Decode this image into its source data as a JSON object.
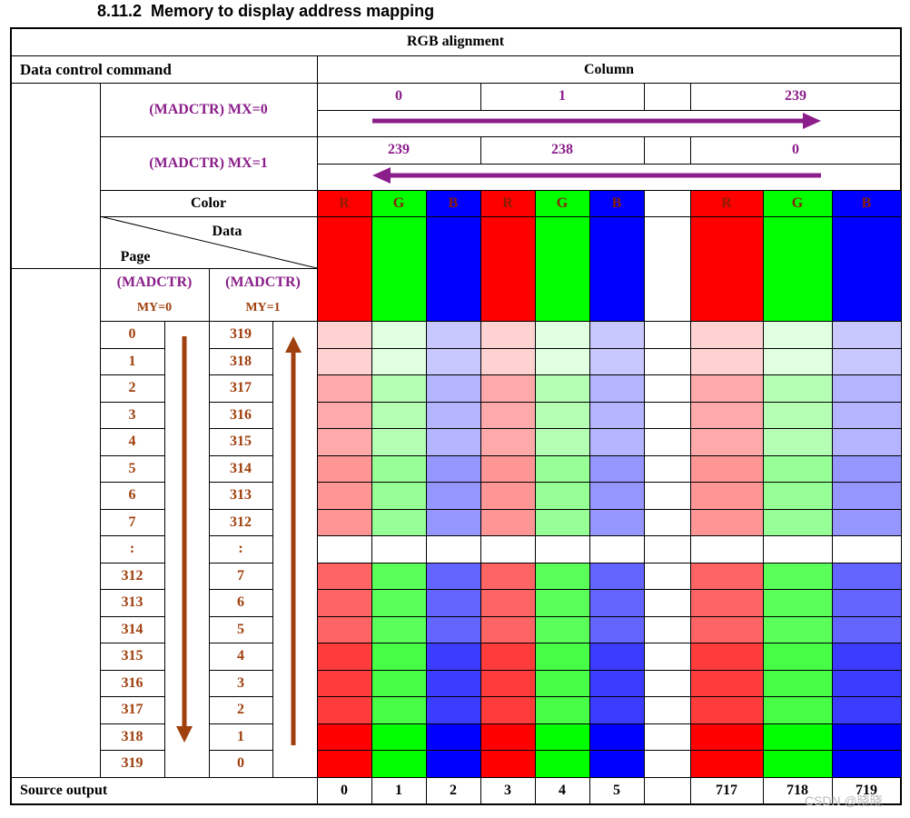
{
  "heading": "8.11.2  Memory to display address mapping",
  "header": {
    "title": "RGB alignment",
    "data_control_command": "Data control command",
    "column": "Column"
  },
  "mx0": {
    "label": "(MADCTR) MX=0",
    "col_a": "0",
    "col_b": "1",
    "col_c": "239"
  },
  "mx1": {
    "label": "(MADCTR) MX=1",
    "col_a": "239",
    "col_b": "238",
    "col_c": "0"
  },
  "color_label": "Color",
  "data_label": "Data",
  "page_label": "Page",
  "my0": {
    "line1": "(MADCTR)",
    "line2": "MY=0"
  },
  "my1": {
    "line1": "(MADCTR)",
    "line2": "MY=1"
  },
  "channels": [
    "R",
    "G",
    "B",
    "R",
    "G",
    "B",
    "R",
    "G",
    "B"
  ],
  "rows": [
    {
      "my0": "0",
      "my1": "319"
    },
    {
      "my0": "1",
      "my1": "318"
    },
    {
      "my0": "2",
      "my1": "317"
    },
    {
      "my0": "3",
      "my1": "316"
    },
    {
      "my0": "4",
      "my1": "315"
    },
    {
      "my0": "5",
      "my1": "314"
    },
    {
      "my0": "6",
      "my1": "313"
    },
    {
      "my0": "7",
      "my1": "312"
    },
    {
      "my0": ":",
      "my1": ":"
    },
    {
      "my0": "312",
      "my1": "7"
    },
    {
      "my0": "313",
      "my1": "6"
    },
    {
      "my0": "314",
      "my1": "5"
    },
    {
      "my0": "315",
      "my1": "4"
    },
    {
      "my0": "316",
      "my1": "3"
    },
    {
      "my0": "317",
      "my1": "2"
    },
    {
      "my0": "318",
      "my1": "1"
    },
    {
      "my0": "319",
      "my1": "0"
    }
  ],
  "row_shades": {
    "R": [
      "#ffd2d2",
      "#ffd2d2",
      "#ffaaaa",
      "#ffaaaa",
      "#ffaaaa",
      "#ff9696",
      "#ff9696",
      "#ff9696",
      "#ffffff",
      "#ff6464",
      "#ff6464",
      "#ff6464",
      "#ff3c3c",
      "#ff3c3c",
      "#ff3c3c",
      "#ff0000",
      "#ff0000"
    ],
    "G": [
      "#e1ffe1",
      "#e1ffe1",
      "#b4ffb4",
      "#b4ffb4",
      "#b4ffb4",
      "#96ff96",
      "#96ff96",
      "#96ff96",
      "#ffffff",
      "#5aff5a",
      "#5aff5a",
      "#5aff5a",
      "#46ff46",
      "#46ff46",
      "#46ff46",
      "#00ff00",
      "#00ff00"
    ],
    "B": [
      "#c8c8ff",
      "#c8c8ff",
      "#b4b4ff",
      "#b4b4ff",
      "#b4b4ff",
      "#9696ff",
      "#9696ff",
      "#9696ff",
      "#ffffff",
      "#6464ff",
      "#6464ff",
      "#6464ff",
      "#3c3cff",
      "#3c3cff",
      "#3c3cff",
      "#0000ff",
      "#0000ff"
    ]
  },
  "colors": {
    "R": "#ff0000",
    "G": "#00ff00",
    "B": "#0000ff",
    "purple": "#8B1E8B",
    "brown": "#A0400E",
    "arrow_brown": "#A0400E"
  },
  "source_output": {
    "label": "Source output",
    "values": [
      "0",
      "1",
      "2",
      "3",
      "4",
      "5",
      "717",
      "718",
      "719"
    ]
  },
  "watermark": "CSDN @晓晓"
}
